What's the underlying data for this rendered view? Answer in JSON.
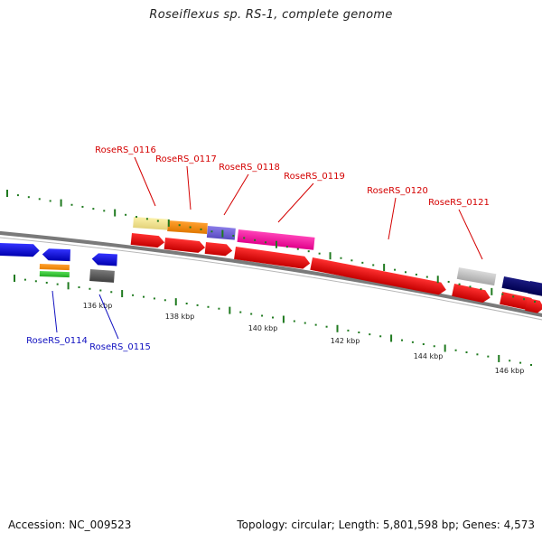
{
  "title": "Roseiflexus sp. RS-1, complete genome",
  "footer": {
    "accession": "Accession: NC_009523",
    "stats": "Topology: circular; Length: 5,801,598 bp; Genes: 4,573"
  },
  "colors": {
    "backbone": "#7a7a7a",
    "tick": "#1f7a1f",
    "label_forward": "#d40000",
    "label_reverse": "#1010c0"
  },
  "ticks": [
    "136 kbp",
    "138 kbp",
    "140 kbp",
    "142 kbp",
    "144 kbp",
    "146 kbp"
  ],
  "gene_labels": [
    {
      "name": "RoseRS_0114",
      "strand": "reverse"
    },
    {
      "name": "RoseRS_0115",
      "strand": "reverse"
    },
    {
      "name": "RoseRS_0116",
      "strand": "forward"
    },
    {
      "name": "RoseRS_0117",
      "strand": "forward"
    },
    {
      "name": "RoseRS_0118",
      "strand": "forward"
    },
    {
      "name": "RoseRS_0119",
      "strand": "forward"
    },
    {
      "name": "RoseRS_0120",
      "strand": "forward"
    },
    {
      "name": "RoseRS_0121",
      "strand": "forward"
    }
  ]
}
